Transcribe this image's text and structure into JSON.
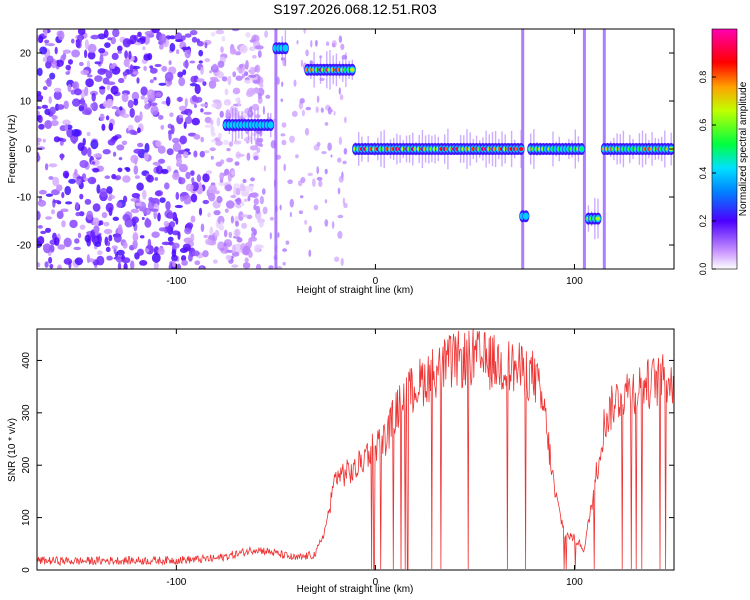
{
  "figure_title": "S197.2026.068.12.51.R03",
  "chart_data": [
    {
      "type": "heatmap",
      "title": "",
      "xlabel": "Height of straight line (km)",
      "ylabel": "Frequency (Hz)",
      "xlim": [
        -170,
        150
      ],
      "ylim": [
        -25,
        25
      ],
      "x_ticks": [
        -100,
        0,
        100
      ],
      "y_ticks": [
        -20,
        -10,
        0,
        10,
        20
      ],
      "colorbar": {
        "label": "Normalized spectral amplitude",
        "range": [
          0,
          1
        ],
        "ticks": [
          0.0,
          0.2,
          0.4,
          0.6,
          0.8
        ],
        "tick_labels": [
          "0.0",
          "0.2",
          "0.4",
          "0.6",
          "0.8"
        ]
      },
      "noise_region_x": [
        -170,
        -65
      ],
      "features": [
        {
          "x": [
            -75,
            -52
          ],
          "freq": 5,
          "peak_amplitude": 0.3
        },
        {
          "x": [
            -50,
            -44
          ],
          "freq": 21,
          "peak_amplitude": 0.5
        },
        {
          "x": [
            -34,
            -10
          ],
          "freq": 16.5,
          "peak_amplitude": 0.85
        },
        {
          "x": [
            -10,
            74
          ],
          "freq": 0,
          "peak_amplitude": 0.95
        },
        {
          "x": [
            74,
            76
          ],
          "freq": -14,
          "peak_amplitude": 0.3
        },
        {
          "x": [
            78,
            105
          ],
          "freq": 0,
          "peak_amplitude": 0.7
        },
        {
          "x": [
            107,
            113
          ],
          "freq": -14.5,
          "peak_amplitude": 0.85
        },
        {
          "x": [
            115,
            150
          ],
          "freq": 0,
          "peak_amplitude": 0.8
        }
      ]
    },
    {
      "type": "line",
      "title": "",
      "xlabel": "Height of straight line (km)",
      "ylabel": "SNR (10 * v/v)",
      "xlim": [
        -170,
        150
      ],
      "ylim": [
        0,
        460
      ],
      "x_ticks": [
        -100,
        0,
        100
      ],
      "y_ticks": [
        0,
        100,
        200,
        300,
        400
      ],
      "color": "#ee3333",
      "series": [
        {
          "x": [
            -170,
            -150,
            -130,
            -110,
            -90,
            -80,
            -70,
            -60,
            -50,
            -40,
            -30,
            -25,
            -20,
            -15,
            -10,
            -5,
            0,
            5,
            10,
            15,
            20,
            30,
            40,
            50,
            60,
            70,
            80,
            85,
            90,
            95,
            100,
            105,
            110,
            115,
            120,
            125,
            130,
            140,
            150
          ],
          "values": [
            18,
            17,
            18,
            18,
            20,
            22,
            30,
            40,
            32,
            22,
            30,
            80,
            180,
            185,
            190,
            220,
            240,
            250,
            300,
            330,
            350,
            380,
            400,
            405,
            395,
            385,
            370,
            300,
            150,
            70,
            60,
            40,
            160,
            280,
            320,
            340,
            345,
            360,
            365
          ]
        }
      ]
    }
  ]
}
